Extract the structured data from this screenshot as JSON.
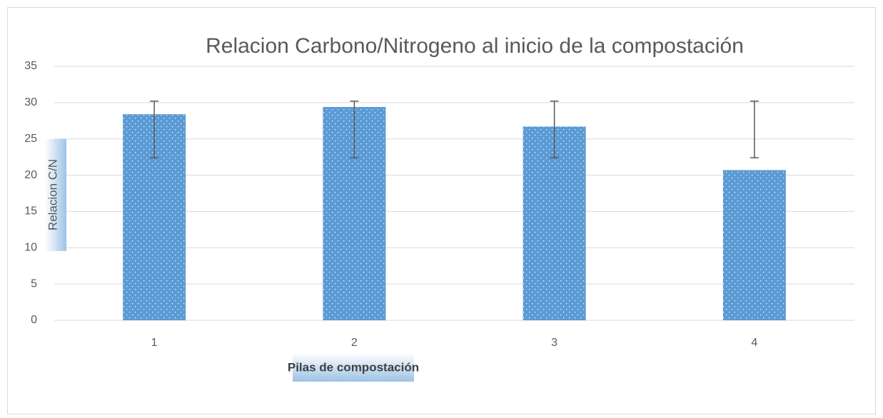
{
  "chart_data": {
    "type": "bar",
    "title": "Relacion Carbono/Nitrogeno  al inicio de la compostación",
    "x_label": "Pilas de compostación",
    "y_label": "Relacion C/N",
    "categories": [
      "1",
      "2",
      "3",
      "4"
    ],
    "values": [
      28.4,
      29.4,
      26.7,
      20.7
    ],
    "error_center": [
      26.3,
      26.3,
      26.3,
      26.3
    ],
    "errors": [
      3.9,
      3.9,
      3.9,
      3.9
    ],
    "color": "#5b9bd5",
    "ylim": [
      0,
      35
    ],
    "yticks": [
      0,
      5,
      10,
      15,
      20,
      25,
      30,
      35
    ],
    "grid": true
  }
}
